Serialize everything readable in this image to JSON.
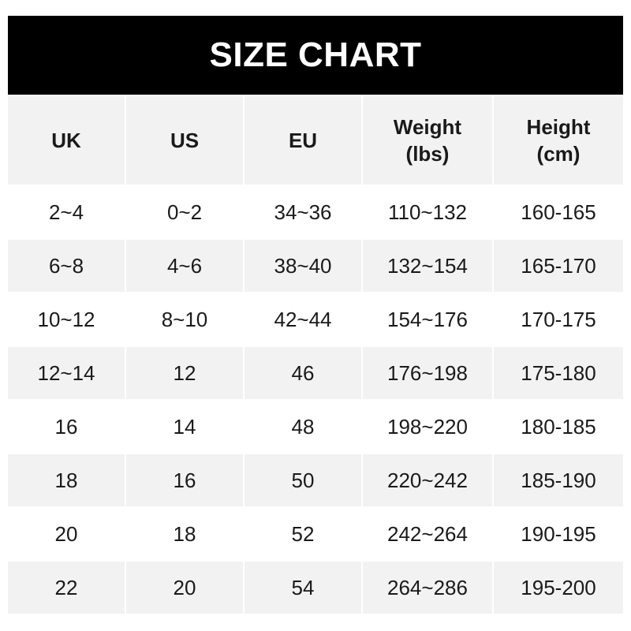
{
  "title": "SIZE CHART",
  "headers": [
    "UK",
    "US",
    "EU",
    "Weight\n(lbs)",
    "Height\n(cm)"
  ],
  "rows": [
    [
      "2~4",
      "0~2",
      "34~36",
      "110~132",
      "160-165"
    ],
    [
      "6~8",
      "4~6",
      "38~40",
      "132~154",
      "165-170"
    ],
    [
      "10~12",
      "8~10",
      "42~44",
      "154~176",
      "170-175"
    ],
    [
      "12~14",
      "12",
      "46",
      "176~198",
      "175-180"
    ],
    [
      "16",
      "14",
      "48",
      "198~220",
      "180-185"
    ],
    [
      "18",
      "16",
      "50",
      "220~242",
      "185-190"
    ],
    [
      "20",
      "18",
      "52",
      "242~264",
      "190-195"
    ],
    [
      "22",
      "20",
      "54",
      "264~286",
      "195-200"
    ]
  ],
  "colors": {
    "title_bg": "#000000",
    "title_text": "#ffffff",
    "stripe": "#f2f2f2"
  }
}
